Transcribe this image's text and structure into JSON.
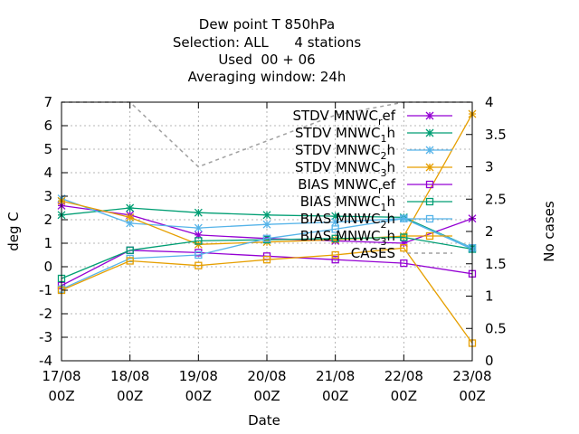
{
  "chart_data": {
    "type": "line",
    "title_lines": [
      "Dew point T 850hPa",
      "Selection: ALL      4 stations",
      "Used  00 + 06",
      "Averaging window: 24h"
    ],
    "xlabel": "Date",
    "ylabel": "deg C",
    "y2label": "No cases",
    "x": [
      [
        "17/08",
        "00Z"
      ],
      [
        "18/08",
        "00Z"
      ],
      [
        "19/08",
        "00Z"
      ],
      [
        "20/08",
        "00Z"
      ],
      [
        "21/08",
        "00Z"
      ],
      [
        "22/08",
        "00Z"
      ],
      [
        "23/08",
        "00Z"
      ]
    ],
    "ylim": [
      -4,
      7
    ],
    "y2lim": [
      0,
      4
    ],
    "yticks": [
      -4,
      -3,
      -2,
      -1,
      0,
      1,
      2,
      3,
      4,
      5,
      6,
      7
    ],
    "y2ticks": [
      "0",
      "0.5",
      "1",
      "1.5",
      "2",
      "2.5",
      "3",
      "3.5",
      "4"
    ],
    "grid": true,
    "legend_position": "top-right",
    "series": [
      {
        "name": "STDV MNWC_ref",
        "color": "#9400d3",
        "marker": "star",
        "dash": false,
        "values": [
          2.6,
          2.2,
          1.35,
          1.2,
          1.1,
          1.0,
          2.05
        ]
      },
      {
        "name": "STDV MNWC_1h",
        "color": "#009e73",
        "marker": "star",
        "dash": false,
        "values": [
          2.2,
          2.5,
          2.3,
          2.2,
          2.15,
          2.1,
          0.8
        ]
      },
      {
        "name": "STDV MNWC_2h",
        "color": "#56b4e9",
        "marker": "star",
        "dash": false,
        "values": [
          2.9,
          1.85,
          1.65,
          1.8,
          1.9,
          2.05,
          0.75
        ]
      },
      {
        "name": "STDV MNWC_3h",
        "color": "#e69f00",
        "marker": "star",
        "dash": false,
        "values": [
          2.8,
          2.1,
          0.95,
          1.05,
          1.15,
          1.3,
          6.5
        ]
      },
      {
        "name": "BIAS MNWC_ref",
        "color": "#9400d3",
        "marker": "square",
        "dash": false,
        "values": [
          -0.8,
          0.7,
          0.6,
          0.45,
          0.3,
          0.15,
          -0.3
        ]
      },
      {
        "name": "BIAS MNWC_1h",
        "color": "#009e73",
        "marker": "square",
        "dash": false,
        "values": [
          -0.5,
          0.7,
          1.1,
          1.15,
          1.2,
          1.25,
          0.75
        ]
      },
      {
        "name": "BIAS MNWC_2h",
        "color": "#56b4e9",
        "marker": "square",
        "dash": false,
        "values": [
          -0.95,
          0.35,
          0.5,
          1.2,
          1.6,
          2.05,
          0.8
        ]
      },
      {
        "name": "BIAS MNWC_3h",
        "color": "#e69f00",
        "marker": "square",
        "dash": false,
        "values": [
          -1.0,
          0.25,
          0.05,
          0.3,
          0.5,
          0.8,
          -3.25
        ]
      },
      {
        "name": "CASES",
        "color": "#a0a0a0",
        "marker": "none",
        "dash": true,
        "axis": "y2",
        "values": [
          4,
          4,
          3,
          3.4,
          3.8,
          4,
          4
        ]
      }
    ],
    "legend": [
      {
        "base": "STDV MNWC",
        "sub": "r",
        "tail": "ef"
      },
      {
        "base": "STDV MNWC",
        "sub": "1",
        "tail": "h"
      },
      {
        "base": "STDV MNWC",
        "sub": "2",
        "tail": "h"
      },
      {
        "base": "STDV MNWC",
        "sub": "3",
        "tail": "h"
      },
      {
        "base": "BIAS MNWC",
        "sub": "r",
        "tail": "ef"
      },
      {
        "base": "BIAS MNWC",
        "sub": "1",
        "tail": "h"
      },
      {
        "base": "BIAS MNWC",
        "sub": "2",
        "tail": "h"
      },
      {
        "base": "BIAS MNWC",
        "sub": "3",
        "tail": "h"
      },
      {
        "base": "CASES",
        "sub": "",
        "tail": ""
      }
    ]
  }
}
